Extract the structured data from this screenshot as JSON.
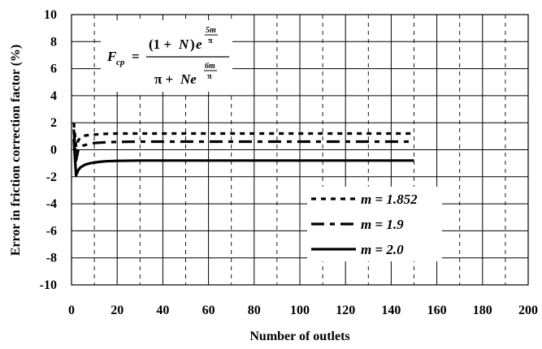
{
  "chart_data": {
    "type": "line",
    "title": "",
    "xlabel": "Number of outlets",
    "ylabel": "Error in friction correction factor (%)",
    "xlim": [
      0,
      200
    ],
    "ylim": [
      -10,
      10
    ],
    "x_ticks": [
      "0",
      "20",
      "40",
      "60",
      "80",
      "100",
      "120",
      "140",
      "160",
      "180",
      "200"
    ],
    "y_ticks": [
      "10",
      "8",
      "6",
      "4",
      "2",
      "0",
      "-2",
      "-4",
      "-6",
      "-8",
      "-10"
    ],
    "grid": true,
    "legend_position": "bottom-right",
    "formula": {
      "lhs_main": "F",
      "lhs_sub": "cp",
      "equals": "=",
      "num_open": "(1 + ",
      "num_n": "N",
      "num_close": ")",
      "num_e": "e",
      "num_exp_top": "5m",
      "num_exp_bot": "π",
      "den_pi": "π + ",
      "den_ne": "Ne",
      "den_exp_top": "6m",
      "den_exp_bot": "π"
    },
    "series": [
      {
        "name": "m = 1.852",
        "style": "dotted",
        "x": [
          1,
          2,
          3,
          4,
          5,
          6,
          8,
          10,
          12,
          15,
          20,
          30,
          40,
          60,
          80,
          100,
          120,
          150
        ],
        "y": [
          2.0,
          0.2,
          0.7,
          0.9,
          1.0,
          1.05,
          1.1,
          1.12,
          1.15,
          1.18,
          1.2,
          1.2,
          1.2,
          1.2,
          1.2,
          1.2,
          1.2,
          1.2
        ]
      },
      {
        "name": "m = 1.9",
        "style": "dashdot",
        "x": [
          1,
          2,
          3,
          4,
          5,
          6,
          8,
          10,
          12,
          15,
          20,
          30,
          40,
          60,
          80,
          100,
          120,
          150
        ],
        "y": [
          1.5,
          -0.8,
          0.0,
          0.2,
          0.3,
          0.35,
          0.45,
          0.5,
          0.52,
          0.55,
          0.58,
          0.6,
          0.6,
          0.6,
          0.6,
          0.6,
          0.6,
          0.6
        ]
      },
      {
        "name": "m = 2.0",
        "style": "solid",
        "x": [
          1,
          2,
          3,
          4,
          5,
          6,
          8,
          10,
          12,
          15,
          20,
          30,
          40,
          60,
          80,
          100,
          120,
          150
        ],
        "y": [
          0.8,
          -1.9,
          -1.5,
          -1.3,
          -1.2,
          -1.1,
          -1.0,
          -0.95,
          -0.9,
          -0.85,
          -0.82,
          -0.8,
          -0.8,
          -0.8,
          -0.8,
          -0.8,
          -0.8,
          -0.8
        ]
      }
    ]
  }
}
